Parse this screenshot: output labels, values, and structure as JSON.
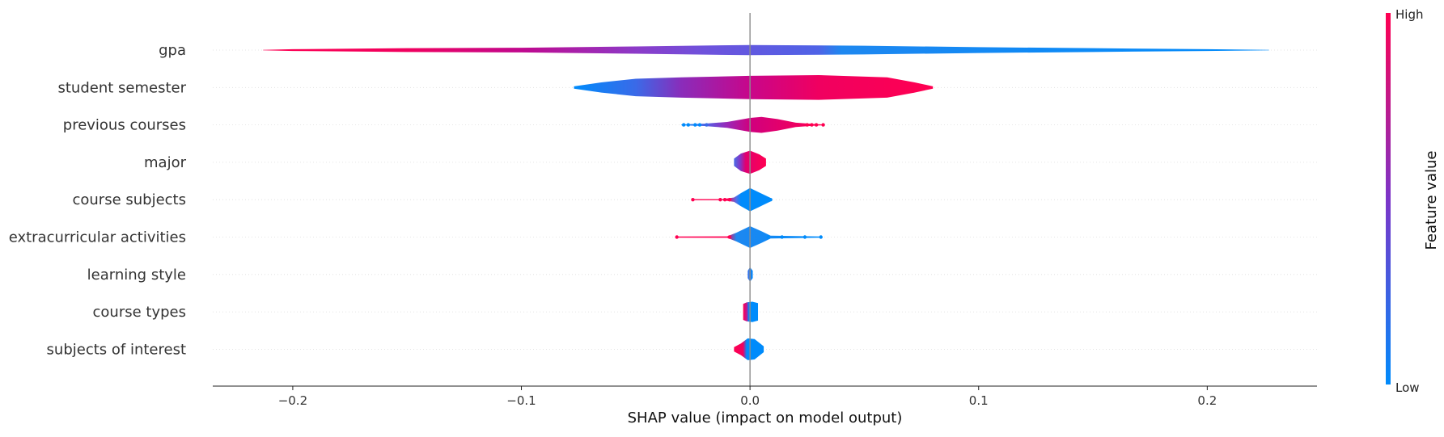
{
  "chart_data": {
    "type": "violin",
    "title": "",
    "xlabel": "SHAP value (impact on model output)",
    "xlim": [
      -0.235,
      0.248
    ],
    "xticks": [
      {
        "value": -0.2,
        "label": "−0.2"
      },
      {
        "value": -0.1,
        "label": "−0.1"
      },
      {
        "value": 0.0,
        "label": "0.0"
      },
      {
        "value": 0.1,
        "label": "0.1"
      },
      {
        "value": 0.2,
        "label": "0.2"
      }
    ],
    "features": [
      {
        "name": "gpa",
        "min": -0.213,
        "max": 0.227,
        "profile": [
          [
            -0.213,
            0.015
          ],
          [
            -0.2,
            0.06
          ],
          [
            -0.15,
            0.13
          ],
          [
            -0.1,
            0.16
          ],
          [
            -0.05,
            0.25
          ],
          [
            0.0,
            0.35
          ],
          [
            0.05,
            0.3
          ],
          [
            0.1,
            0.2
          ],
          [
            0.15,
            0.13
          ],
          [
            0.2,
            0.06
          ],
          [
            0.227,
            0.015
          ]
        ],
        "colors": [
          [
            -0.213,
            "#ff0051"
          ],
          [
            -0.15,
            "#f0005e"
          ],
          [
            -0.1,
            "#c0088e"
          ],
          [
            -0.05,
            "#8c3bc8"
          ],
          [
            -0.02,
            "#6e52dc"
          ],
          [
            0.03,
            "#4f63e6"
          ],
          [
            0.04,
            "#1e88f0"
          ],
          [
            0.227,
            "#008bfb"
          ]
        ]
      },
      {
        "name": "student semester",
        "min": -0.077,
        "max": 0.08,
        "profile": [
          [
            -0.077,
            0.08
          ],
          [
            -0.065,
            0.35
          ],
          [
            -0.05,
            0.6
          ],
          [
            -0.03,
            0.7
          ],
          [
            0.0,
            0.8
          ],
          [
            0.03,
            0.85
          ],
          [
            0.06,
            0.7
          ],
          [
            0.072,
            0.35
          ],
          [
            0.08,
            0.08
          ]
        ],
        "colors": [
          [
            -0.077,
            "#008bfb"
          ],
          [
            -0.05,
            "#3a6ae8"
          ],
          [
            -0.03,
            "#8a2cba"
          ],
          [
            0.0,
            "#c8068a"
          ],
          [
            0.03,
            "#f00060"
          ],
          [
            0.08,
            "#ff0051"
          ]
        ]
      },
      {
        "name": "previous courses",
        "min": -0.03,
        "max": 0.032,
        "profile": [
          [
            -0.03,
            0.03
          ],
          [
            -0.02,
            0.08
          ],
          [
            -0.01,
            0.2
          ],
          [
            0.0,
            0.48
          ],
          [
            0.005,
            0.55
          ],
          [
            0.012,
            0.4
          ],
          [
            0.02,
            0.15
          ],
          [
            0.028,
            0.06
          ],
          [
            0.032,
            0.03
          ]
        ],
        "colors": [
          [
            -0.03,
            "#008bfb"
          ],
          [
            -0.018,
            "#5a5ae0"
          ],
          [
            -0.01,
            "#9a28b8"
          ],
          [
            0.0,
            "#d0007e"
          ],
          [
            0.032,
            "#ff0051"
          ]
        ]
      },
      {
        "name": "major",
        "min": -0.007,
        "max": 0.007,
        "profile": [
          [
            -0.007,
            0.25
          ],
          [
            -0.004,
            0.6
          ],
          [
            0.0,
            0.8
          ],
          [
            0.004,
            0.55
          ],
          [
            0.007,
            0.25
          ]
        ],
        "colors": [
          [
            -0.007,
            "#4a6ce8"
          ],
          [
            -0.004,
            "#8a30c0"
          ],
          [
            -0.002,
            "#e00070"
          ],
          [
            0.007,
            "#ff0051"
          ]
        ]
      },
      {
        "name": "course subjects",
        "min": -0.025,
        "max": 0.009,
        "profile": [
          [
            -0.025,
            0.04
          ],
          [
            -0.012,
            0.04
          ],
          [
            -0.007,
            0.15
          ],
          [
            -0.004,
            0.45
          ],
          [
            0.0,
            0.8
          ],
          [
            0.004,
            0.5
          ],
          [
            0.009,
            0.12
          ]
        ],
        "colors": [
          [
            -0.025,
            "#ff0051"
          ],
          [
            -0.01,
            "#ff0051"
          ],
          [
            -0.006,
            "#5070e8"
          ],
          [
            -0.004,
            "#008bfb"
          ],
          [
            0.009,
            "#008bfb"
          ]
        ]
      },
      {
        "name": "extracurricular activities",
        "min": -0.032,
        "max": 0.031,
        "profile": [
          [
            -0.032,
            0.04
          ],
          [
            -0.01,
            0.05
          ],
          [
            -0.006,
            0.3
          ],
          [
            0.0,
            0.75
          ],
          [
            0.005,
            0.4
          ],
          [
            0.009,
            0.1
          ],
          [
            0.031,
            0.04
          ]
        ],
        "colors": [
          [
            -0.032,
            "#ff0051"
          ],
          [
            -0.01,
            "#ff0051"
          ],
          [
            -0.006,
            "#1e88f0"
          ],
          [
            0.031,
            "#008bfb"
          ]
        ]
      },
      {
        "name": "learning style",
        "min": -0.001,
        "max": 0.0012,
        "profile": [
          [
            -0.001,
            0.25
          ],
          [
            0.0,
            0.5
          ],
          [
            0.0012,
            0.25
          ]
        ],
        "colors": [
          [
            -0.001,
            "#3a70e8"
          ],
          [
            0.0012,
            "#008bfb"
          ]
        ]
      },
      {
        "name": "course types",
        "min": -0.003,
        "max": 0.0035,
        "profile": [
          [
            -0.003,
            0.55
          ],
          [
            -0.0015,
            0.65
          ],
          [
            0.001,
            0.7
          ],
          [
            0.0035,
            0.6
          ]
        ],
        "colors": [
          [
            -0.003,
            "#ff0051"
          ],
          [
            -0.0015,
            "#c01590"
          ],
          [
            -0.0005,
            "#008bfb"
          ],
          [
            0.0035,
            "#008bfb"
          ]
        ]
      },
      {
        "name": "subjects of interest",
        "min": -0.007,
        "max": 0.006,
        "profile": [
          [
            -0.007,
            0.15
          ],
          [
            -0.004,
            0.4
          ],
          [
            -0.001,
            0.75
          ],
          [
            0.002,
            0.7
          ],
          [
            0.006,
            0.2
          ]
        ],
        "colors": [
          [
            -0.007,
            "#ff0051"
          ],
          [
            -0.003,
            "#f00060"
          ],
          [
            -0.0015,
            "#008bfb"
          ],
          [
            0.006,
            "#008bfb"
          ]
        ]
      }
    ],
    "scatter_points": {
      "previous courses": [
        [
          -0.029,
          "#008bfb"
        ],
        [
          -0.027,
          "#008bfb"
        ],
        [
          -0.024,
          "#008bfb"
        ],
        [
          -0.022,
          "#008bfb"
        ],
        [
          -0.019,
          "#3a6ae8"
        ],
        [
          0.025,
          "#ff0051"
        ],
        [
          0.027,
          "#ff0051"
        ],
        [
          0.029,
          "#ff0051"
        ],
        [
          0.032,
          "#ff0051"
        ]
      ],
      "course subjects": [
        [
          -0.025,
          "#ff0051"
        ],
        [
          -0.013,
          "#ff0051"
        ],
        [
          -0.011,
          "#ff0051"
        ],
        [
          -0.009,
          "#ff0051"
        ],
        [
          0.009,
          "#008bfb"
        ]
      ],
      "extracurricular activities": [
        [
          -0.032,
          "#ff0051"
        ],
        [
          -0.009,
          "#ff0051"
        ],
        [
          0.008,
          "#008bfb"
        ],
        [
          0.014,
          "#008bfb"
        ],
        [
          0.024,
          "#008bfb"
        ],
        [
          0.031,
          "#008bfb"
        ]
      ]
    },
    "colorbar": {
      "label": "Feature value",
      "high_label": "High",
      "low_label": "Low",
      "high_color": "#ff0051",
      "low_color": "#008bfb",
      "mid_color": "#7c35c8"
    },
    "grid": false,
    "zero_line": true
  }
}
